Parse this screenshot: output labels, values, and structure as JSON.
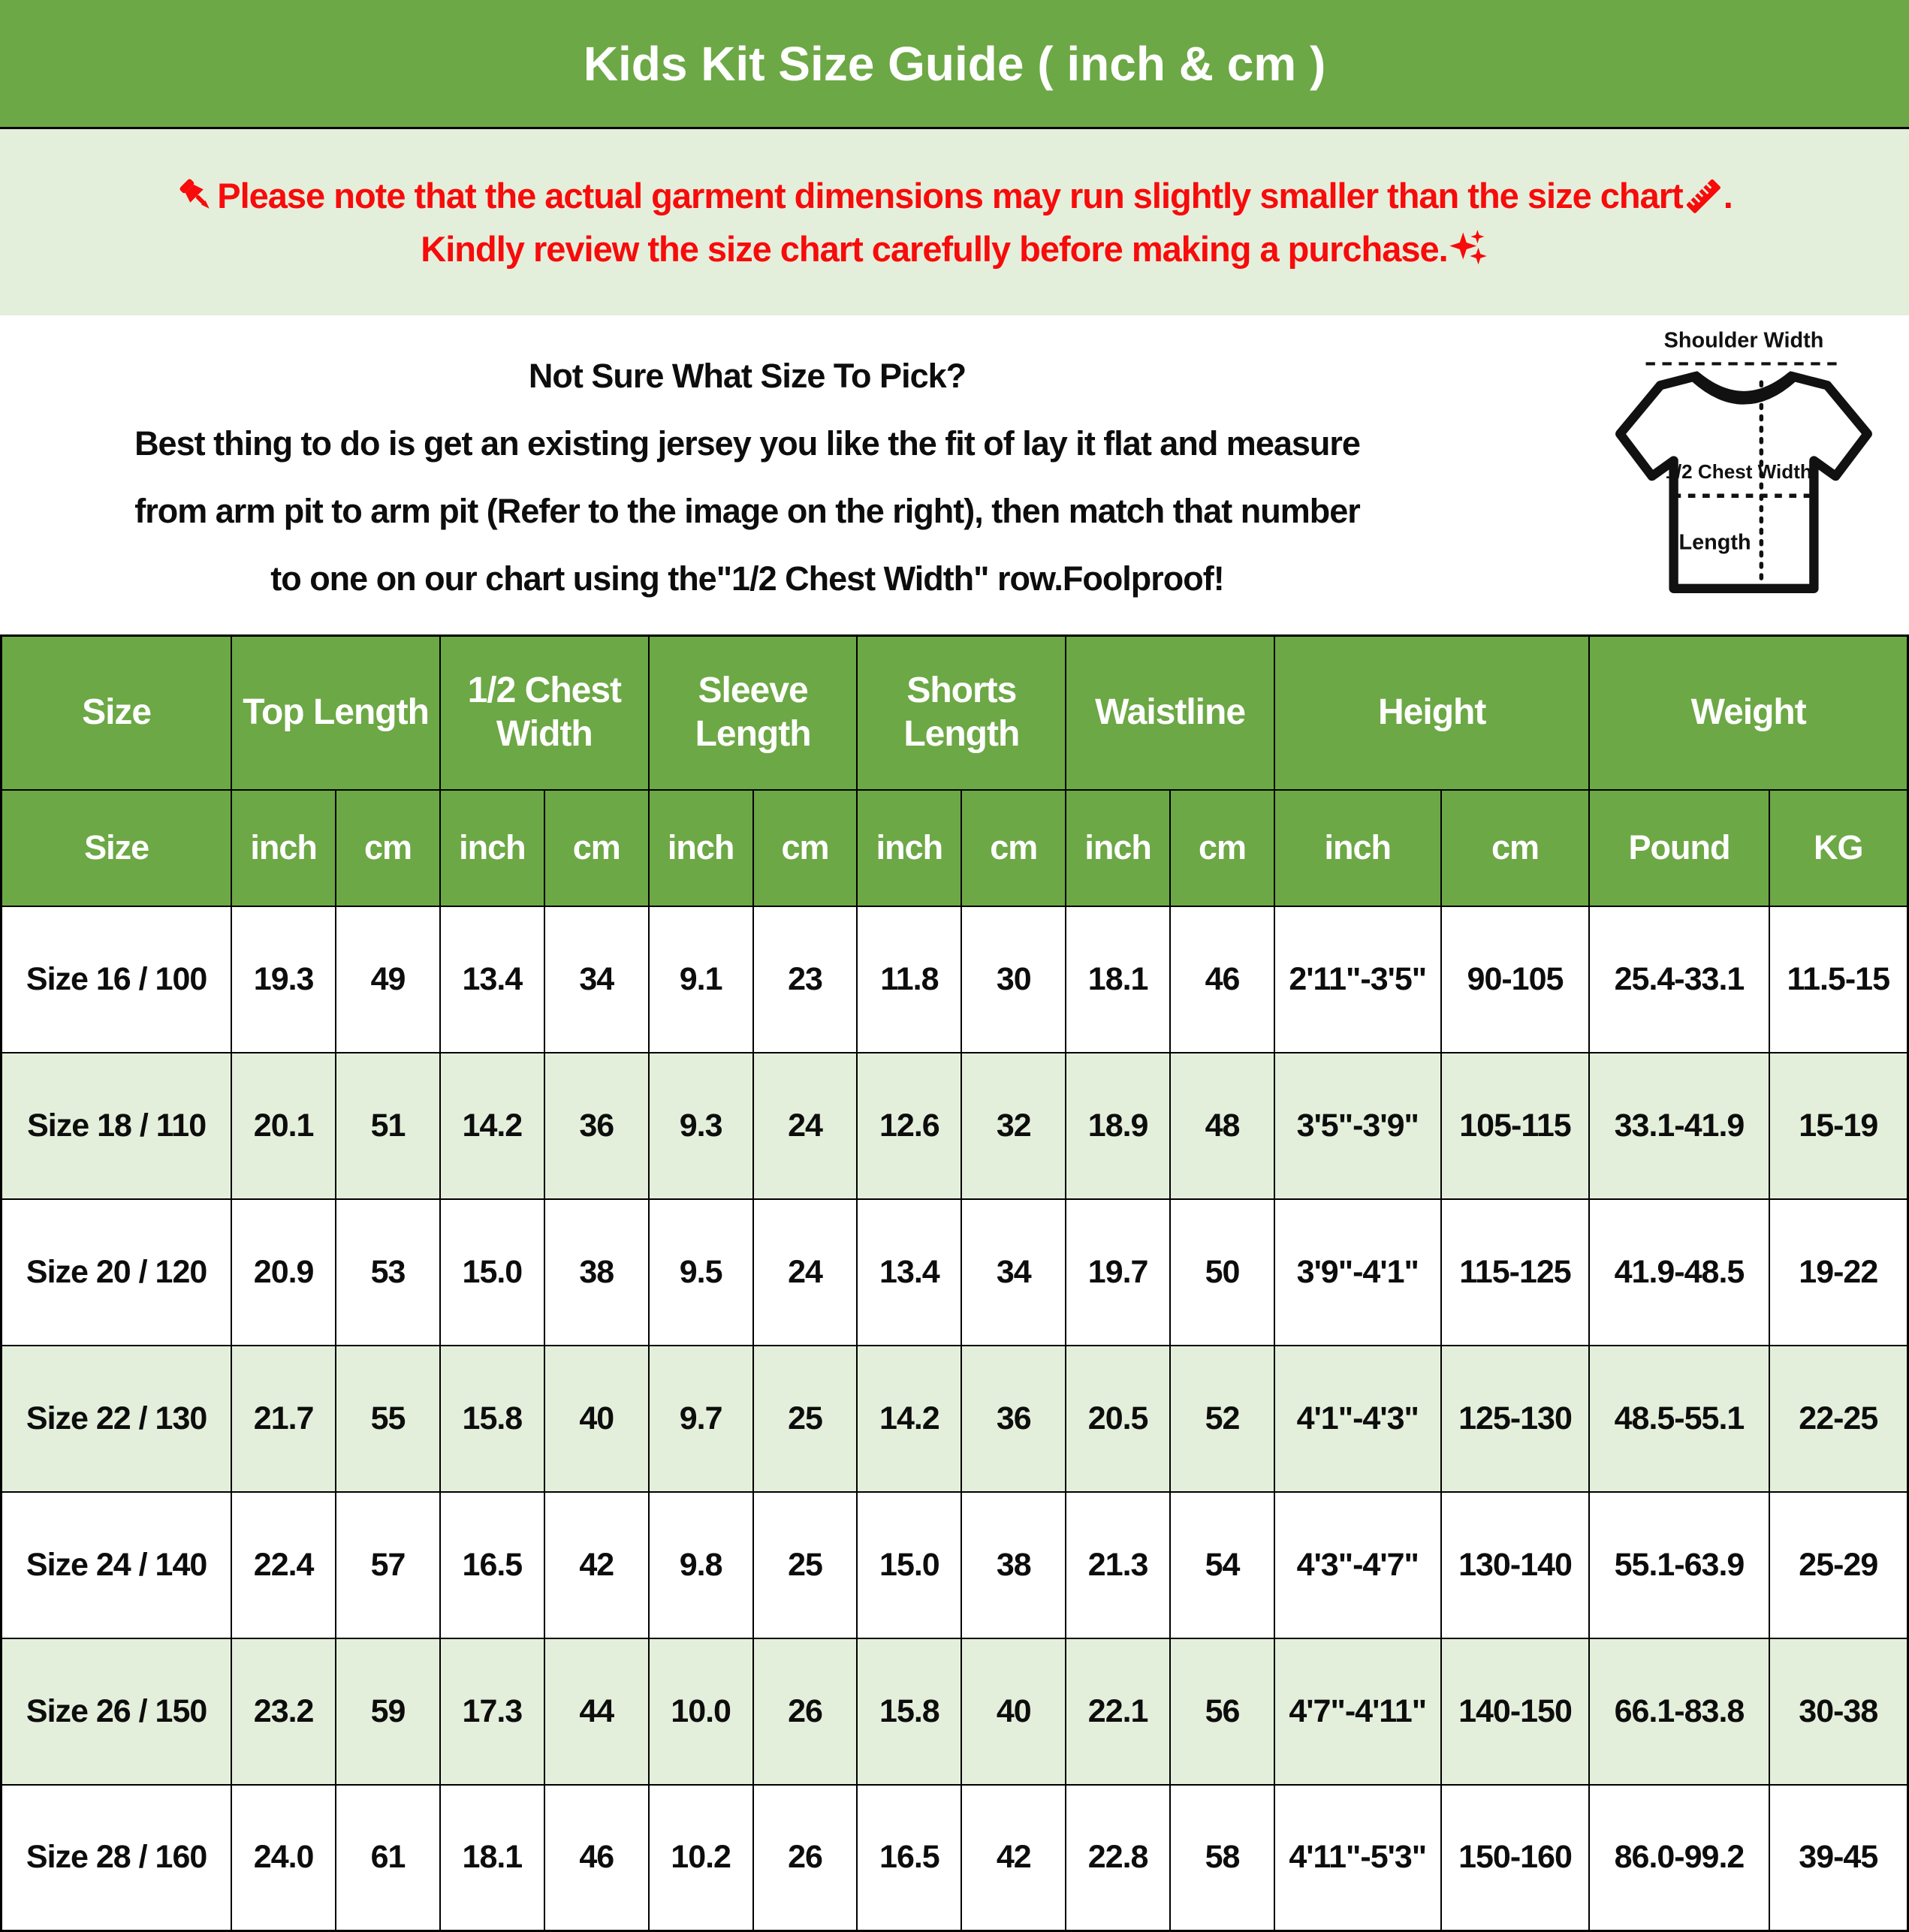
{
  "colors": {
    "green": "#6ca845",
    "light_green": "#e4efdb",
    "red": "#f70b0b",
    "black": "#0d0d0d",
    "white": "#ffffff"
  },
  "title": "Kids Kit Size Guide ( inch & cm )",
  "icons": {
    "pushpin": "📌",
    "ruler": "📏",
    "sparkles": "✨"
  },
  "warning": {
    "line1": "Please note that the actual garment dimensions may run slightly smaller than the size chart ",
    "line1_end": " .",
    "line2": "Kindly review the size chart carefully before making a purchase."
  },
  "info": {
    "line1": "Not Sure What Size To Pick?",
    "line2": "Best thing to do is get an existing jersey you like the fit of lay it flat and measure",
    "line3": "from arm pit to arm pit (Refer to the image on the right), then match that number",
    "line4": "to one on our chart using the\"1/2 Chest Width\" row.Foolproof!"
  },
  "diagram": {
    "shoulder_width_label": "Shoulder Width",
    "chest_width_label": "1/2 Chest Width",
    "length_label": "Length"
  },
  "table": {
    "header_groups": [
      "Size",
      "Top Length",
      "1/2 Chest Width",
      "Sleeve Length",
      "Shorts Length",
      "Waistline",
      "Height",
      "Weight"
    ],
    "sub_headers": [
      "Size",
      "inch",
      "cm",
      "inch",
      "cm",
      "inch",
      "cm",
      "inch",
      "cm",
      "inch",
      "cm",
      "inch",
      "cm",
      "Pound",
      "KG"
    ],
    "rows": [
      [
        "Size 16 / 100",
        "19.3",
        "49",
        "13.4",
        "34",
        "9.1",
        "23",
        "11.8",
        "30",
        "18.1",
        "46",
        "2'11\"-3'5\"",
        "90-105",
        "25.4-33.1",
        "11.5-15"
      ],
      [
        "Size 18 / 110",
        "20.1",
        "51",
        "14.2",
        "36",
        "9.3",
        "24",
        "12.6",
        "32",
        "18.9",
        "48",
        "3'5\"-3'9\"",
        "105-115",
        "33.1-41.9",
        "15-19"
      ],
      [
        "Size 20 / 120",
        "20.9",
        "53",
        "15.0",
        "38",
        "9.5",
        "24",
        "13.4",
        "34",
        "19.7",
        "50",
        "3'9\"-4'1\"",
        "115-125",
        "41.9-48.5",
        "19-22"
      ],
      [
        "Size 22 / 130",
        "21.7",
        "55",
        "15.8",
        "40",
        "9.7",
        "25",
        "14.2",
        "36",
        "20.5",
        "52",
        "4'1\"-4'3\"",
        "125-130",
        "48.5-55.1",
        "22-25"
      ],
      [
        "Size 24 / 140",
        "22.4",
        "57",
        "16.5",
        "42",
        "9.8",
        "25",
        "15.0",
        "38",
        "21.3",
        "54",
        "4'3\"-4'7\"",
        "130-140",
        "55.1-63.9",
        "25-29"
      ],
      [
        "Size 26 / 150",
        "23.2",
        "59",
        "17.3",
        "44",
        "10.0",
        "26",
        "15.8",
        "40",
        "22.1",
        "56",
        "4'7\"-4'11\"",
        "140-150",
        "66.1-83.8",
        "30-38"
      ],
      [
        "Size 28 / 160",
        "24.0",
        "61",
        "18.1",
        "46",
        "10.2",
        "26",
        "16.5",
        "42",
        "22.8",
        "58",
        "4'11\"-5'3\"",
        "150-160",
        "86.0-99.2",
        "39-45"
      ]
    ]
  },
  "chart_data": {
    "type": "table",
    "title": "Kids Kit Size Guide ( inch & cm )",
    "column_groups": [
      "Size",
      "Top Length",
      "1/2 Chest Width",
      "Sleeve Length",
      "Shorts Length",
      "Waistline",
      "Height",
      "Weight"
    ],
    "columns": [
      "Size",
      "Top Length (inch)",
      "Top Length (cm)",
      "1/2 Chest Width (inch)",
      "1/2 Chest Width (cm)",
      "Sleeve Length (inch)",
      "Sleeve Length (cm)",
      "Shorts Length (inch)",
      "Shorts Length (cm)",
      "Waistline (inch)",
      "Waistline (cm)",
      "Height (inch)",
      "Height (cm)",
      "Weight (Pound)",
      "Weight (KG)"
    ],
    "rows": [
      [
        "Size 16 / 100",
        "19.3",
        "49",
        "13.4",
        "34",
        "9.1",
        "23",
        "11.8",
        "30",
        "18.1",
        "46",
        "2'11\"-3'5\"",
        "90-105",
        "25.4-33.1",
        "11.5-15"
      ],
      [
        "Size 18 / 110",
        "20.1",
        "51",
        "14.2",
        "36",
        "9.3",
        "24",
        "12.6",
        "32",
        "18.9",
        "48",
        "3'5\"-3'9\"",
        "105-115",
        "33.1-41.9",
        "15-19"
      ],
      [
        "Size 20 / 120",
        "20.9",
        "53",
        "15.0",
        "38",
        "9.5",
        "24",
        "13.4",
        "34",
        "19.7",
        "50",
        "3'9\"-4'1\"",
        "115-125",
        "41.9-48.5",
        "19-22"
      ],
      [
        "Size 22 / 130",
        "21.7",
        "55",
        "15.8",
        "40",
        "9.7",
        "25",
        "14.2",
        "36",
        "20.5",
        "52",
        "4'1\"-4'3\"",
        "125-130",
        "48.5-55.1",
        "22-25"
      ],
      [
        "Size 24 / 140",
        "22.4",
        "57",
        "16.5",
        "42",
        "9.8",
        "25",
        "15.0",
        "38",
        "21.3",
        "54",
        "4'3\"-4'7\"",
        "130-140",
        "55.1-63.9",
        "25-29"
      ],
      [
        "Size 26 / 150",
        "23.2",
        "59",
        "17.3",
        "44",
        "10.0",
        "26",
        "15.8",
        "40",
        "22.1",
        "56",
        "4'7\"-4'11\"",
        "140-150",
        "66.1-83.8",
        "30-38"
      ],
      [
        "Size 28 / 160",
        "24.0",
        "61",
        "18.1",
        "46",
        "10.2",
        "26",
        "16.5",
        "42",
        "22.8",
        "58",
        "4'11\"-5'3\"",
        "150-160",
        "86.0-99.2",
        "39-45"
      ]
    ]
  }
}
